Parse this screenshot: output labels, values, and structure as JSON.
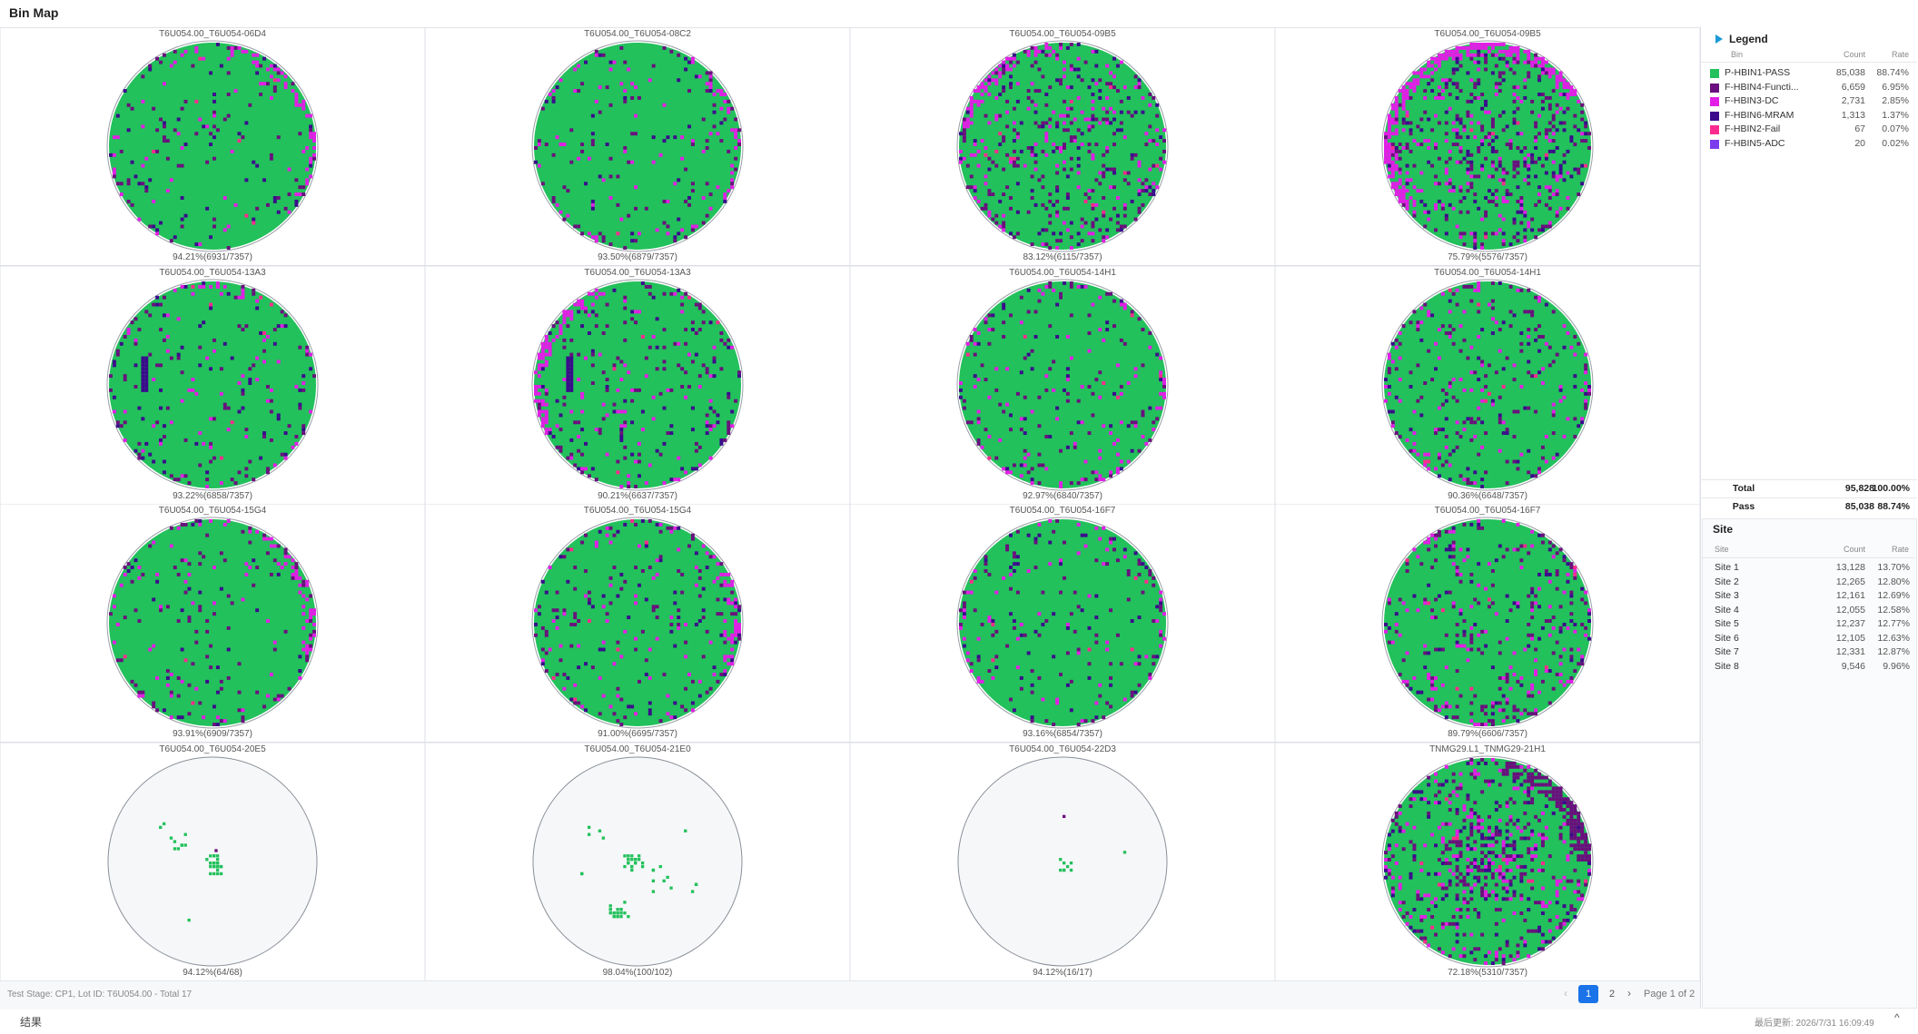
{
  "header": {
    "title": "Bin Map"
  },
  "wafers": [
    {
      "title": "T6U054.00_T6U054-06D4",
      "yield": "94.21%(6931/7357)"
    },
    {
      "title": "T6U054.00_T6U054-08C2",
      "yield": "93.50%(6879/7357)"
    },
    {
      "title": "T6U054.00_T6U054-09B5",
      "yield": "83.12%(6115/7357)"
    },
    {
      "title": "T6U054.00_T6U054-09B5",
      "yield": "75.79%(5576/7357)"
    },
    {
      "title": "T6U054.00_T6U054-13A3",
      "yield": "93.22%(6858/7357)"
    },
    {
      "title": "T6U054.00_T6U054-13A3",
      "yield": "90.21%(6637/7357)"
    },
    {
      "title": "T6U054.00_T6U054-14H1",
      "yield": "92.97%(6840/7357)"
    },
    {
      "title": "T6U054.00_T6U054-14H1",
      "yield": "90.36%(6648/7357)"
    },
    {
      "title": "T6U054.00_T6U054-15G4",
      "yield": "93.91%(6909/7357)"
    },
    {
      "title": "T6U054.00_T6U054-15G4",
      "yield": "91.00%(6695/7357)"
    },
    {
      "title": "T6U054.00_T6U054-16F7",
      "yield": "93.16%(6854/7357)"
    },
    {
      "title": "T6U054.00_T6U054-16F7",
      "yield": "89.79%(6606/7357)"
    },
    {
      "title": "T6U054.00_T6U054-20E5",
      "yield": "94.12%(64/68)"
    },
    {
      "title": "T6U054.00_T6U054-21E0",
      "yield": "98.04%(100/102)"
    },
    {
      "title": "T6U054.00_T6U054-22D3",
      "yield": "94.12%(16/17)"
    },
    {
      "title": "TNMG29.L1_TNMG29-21H1",
      "yield": "72.18%(5310/7357)"
    }
  ],
  "footer": {
    "info": "Test Stage: CP1, Lot ID: T6U054.00 - Total 17",
    "prev": "‹",
    "pages": [
      "1",
      "2"
    ],
    "next": "›",
    "page_info": "Page 1 of 2"
  },
  "status_bar": {
    "label": "结果",
    "updated": "最后更新: 2026/7/31 16:09:49",
    "scroll_top": "^"
  },
  "legend": {
    "title": "Legend",
    "columns": [
      "Bin",
      "Count",
      "Rate"
    ],
    "rows": [
      {
        "bin": "P-HBIN1-PASS",
        "color": "#22c15b",
        "count": "85,038",
        "rate": "88.74%"
      },
      {
        "bin": "F-HBIN4-Functi...",
        "color": "#6a0f7d",
        "count": "6,659",
        "rate": "6.95%"
      },
      {
        "bin": "F-HBIN3-DC",
        "color": "#e21ee6",
        "count": "2,731",
        "rate": "2.85%"
      },
      {
        "bin": "F-HBIN6-MRAM",
        "color": "#3b0a8c",
        "count": "1,313",
        "rate": "1.37%"
      },
      {
        "bin": "F-HBIN2-Fail",
        "color": "#ff2a8f",
        "count": "67",
        "rate": "0.07%"
      },
      {
        "bin": "F-HBIN5-ADC",
        "color": "#7c3aed",
        "count": "20",
        "rate": "0.02%"
      }
    ],
    "total": {
      "label": "Total",
      "count": "95,828",
      "rate": "100.00%"
    },
    "pass": {
      "label": "Pass",
      "count": "85,038",
      "rate": "88.74%"
    }
  },
  "site": {
    "title": "Site",
    "columns": [
      "Site",
      "Count",
      "Rate"
    ],
    "rows": [
      {
        "site": "Site 1",
        "count": "13,128",
        "rate": "13.70%"
      },
      {
        "site": "Site 2",
        "count": "12,265",
        "rate": "12.80%"
      },
      {
        "site": "Site 3",
        "count": "12,161",
        "rate": "12.69%"
      },
      {
        "site": "Site 4",
        "count": "12,055",
        "rate": "12.58%"
      },
      {
        "site": "Site 5",
        "count": "12,237",
        "rate": "12.77%"
      },
      {
        "site": "Site 6",
        "count": "12,105",
        "rate": "12.63%"
      },
      {
        "site": "Site 7",
        "count": "12,331",
        "rate": "12.87%"
      },
      {
        "site": "Site 8",
        "count": "9,546",
        "rate": "9.96%"
      }
    ]
  }
}
